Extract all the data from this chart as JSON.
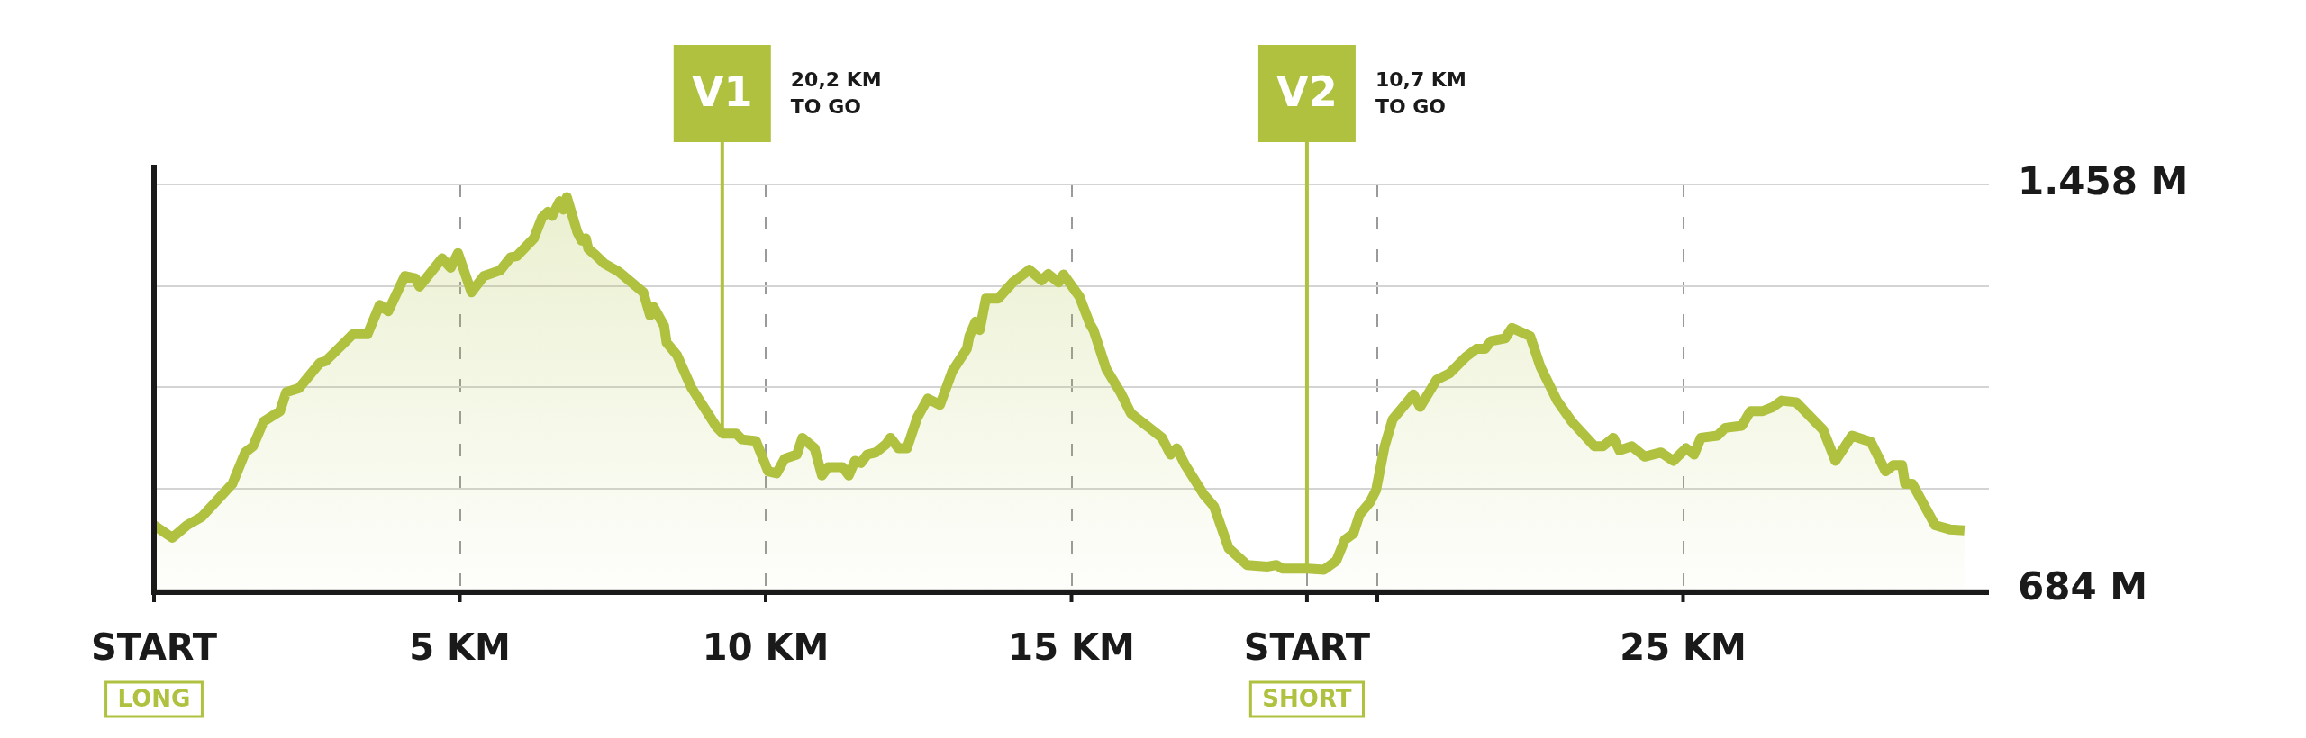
{
  "chart_data": {
    "type": "area",
    "x": [
      0,
      0.3,
      0.54,
      0.78,
      1.28,
      1.49,
      1.62,
      1.79,
      2.06,
      2.16,
      2.37,
      2.71,
      2.81,
      3.08,
      3.25,
      3.49,
      3.69,
      3.83,
      4.1,
      4.27,
      4.34,
      4.71,
      4.85,
      4.97,
      5.19,
      5.39,
      5.66,
      5.83,
      5.93,
      6.21,
      6.34,
      6.44,
      6.51,
      6.63,
      6.69,
      6.75,
      6.92,
      6.99,
      7.06,
      7.1,
      7.22,
      7.36,
      7.6,
      8.0,
      8.11,
      8.17,
      8.34,
      8.38,
      8.55,
      8.79,
      9.2,
      9.3,
      9.52,
      9.61,
      9.84,
      10.04,
      10.18,
      10.31,
      10.51,
      10.6,
      10.8,
      10.92,
      11.02,
      11.26,
      11.36,
      11.46,
      11.56,
      11.66,
      11.8,
      11.97,
      12.04,
      12.17,
      12.31,
      12.48,
      12.65,
      12.85,
      13.05,
      13.29,
      13.33,
      13.43,
      13.5,
      13.6,
      13.8,
      14.04,
      14.31,
      14.51,
      14.62,
      14.79,
      14.87,
      15.13,
      15.3,
      15.36,
      15.57,
      15.8,
      15.97,
      16.35,
      16.48,
      16.62,
      16.72,
      16.86,
      17.16,
      17.33,
      17.57,
      17.87,
      18.21,
      18.35,
      18.45,
      18.86,
      19.13,
      19.33,
      19.47,
      19.61,
      19.71,
      19.88,
      19.98,
      20.12,
      20.25,
      20.59,
      20.7,
      20.97,
      21.18,
      21.45,
      21.62,
      21.76,
      21.86,
      22.09,
      22.2,
      22.5,
      22.67,
      22.94,
      23.18,
      23.55,
      23.69,
      23.86,
      23.96,
      24.16,
      24.37,
      24.64,
      24.84,
      25.05,
      25.18,
      25.29,
      25.56,
      25.69,
      25.96,
      26.1,
      26.3,
      26.47,
      26.61,
      26.85,
      27.29,
      27.49,
      27.76,
      28.07,
      28.31,
      28.44,
      28.58,
      28.63,
      28.75,
      29.12,
      29.36,
      29.6
    ],
    "series": [
      {
        "color": "#afc13f",
        "values": [
          807,
          783,
          807,
          823,
          886,
          946,
          958,
          1005,
          1025,
          1061,
          1069,
          1117,
          1121,
          1152,
          1172,
          1172,
          1228,
          1216,
          1283,
          1279,
          1263,
          1317,
          1299,
          1327,
          1252,
          1283,
          1294,
          1319,
          1321,
          1355,
          1394,
          1406,
          1398,
          1426,
          1410,
          1434,
          1367,
          1351,
          1355,
          1335,
          1323,
          1307,
          1291,
          1252,
          1208,
          1224,
          1188,
          1156,
          1132,
          1069,
          994,
          982,
          982,
          971,
          968,
          910,
          906,
          934,
          942,
          974,
          954,
          902,
          918,
          918,
          902,
          930,
          926,
          942,
          946,
          962,
          974,
          954,
          954,
          1013,
          1049,
          1037,
          1101,
          1144,
          1168,
          1196,
          1180,
          1240,
          1240,
          1271,
          1295,
          1275,
          1287,
          1271,
          1286,
          1244,
          1192,
          1180,
          1105,
          1061,
          1021,
          986,
          974,
          942,
          954,
          922,
          866,
          843,
          763,
          731,
          728,
          731,
          724,
          724,
          722,
          739,
          779,
          791,
          827,
          851,
          874,
          958,
          1009,
          1057,
          1033,
          1085,
          1097,
          1129,
          1144,
          1144,
          1159,
          1164,
          1184,
          1168,
          1109,
          1045,
          1005,
          958,
          958,
          974,
          950,
          958,
          938,
          946,
          930,
          954,
          942,
          974,
          978,
          993,
          997,
          1025,
          1025,
          1033,
          1045,
          1042,
          989,
          930,
          978,
          966,
          910,
          922,
          922,
          886,
          886,
          807,
          799,
          797
        ]
      }
    ],
    "xlim": [
      0,
      30
    ],
    "xticks": [
      {
        "value": 0,
        "label": "START\nLONG"
      },
      {
        "value": 5,
        "label": "5 KM"
      },
      {
        "value": 10,
        "label": "10 KM"
      },
      {
        "value": 15,
        "label": "15 KM"
      },
      {
        "value": 18.85,
        "label": "START\nSHORT"
      },
      {
        "value": 20,
        "label": null
      },
      {
        "value": 25,
        "label": "25 KM"
      }
    ],
    "ylim": [
      684,
      1458
    ],
    "yticks": [
      {
        "value": 684,
        "label": "684 M"
      },
      {
        "value": 877.5,
        "label": null
      },
      {
        "value": 1071,
        "label": null
      },
      {
        "value": 1264.5,
        "label": null
      },
      {
        "value": 1458,
        "label": "1.458 M"
      }
    ],
    "grid": true,
    "ref_lines": [
      {
        "axis": "x",
        "value": 9.29,
        "label": "V1",
        "color": "#afc13f"
      },
      {
        "axis": "x",
        "value": 18.85,
        "label": "V2",
        "color": "#afc13f"
      }
    ],
    "annotations": [
      "20,2 KM\nTO GO",
      "10,7 KM\nTO GO"
    ]
  }
}
